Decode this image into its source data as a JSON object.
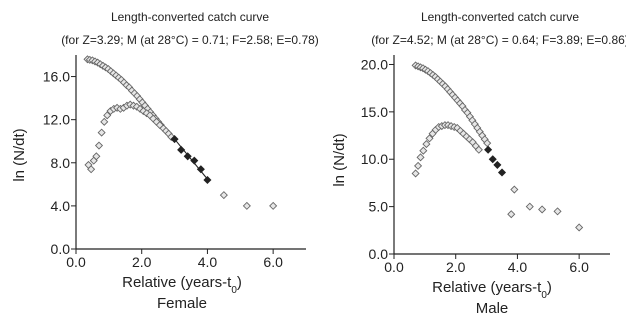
{
  "chart_data": [
    {
      "type": "scatter",
      "title": "Length-converted catch curve",
      "subtitle": "(for Z=3.29; M (at 28°C) = 0.71; F=2.58; E=0.78)",
      "xlabel": "Relative (years-t₀)",
      "ylabel": "ln (N/dt)",
      "panel_label": "Female",
      "xlim": [
        0,
        7
      ],
      "ylim": [
        0,
        18
      ],
      "xticks": [
        0,
        2,
        4,
        6
      ],
      "xtick_labels": [
        "0.0",
        "2.0",
        "4.0",
        "6.0"
      ],
      "yticks": [
        0,
        4,
        8,
        12,
        16
      ],
      "ytick_labels": [
        "0.0",
        "4.0",
        "8.0",
        "12.0",
        "16.0"
      ],
      "grid": false,
      "series": [
        {
          "marker": "open",
          "x": [
            0.35,
            0.42,
            0.5,
            0.58,
            0.66,
            0.74,
            0.82,
            0.9,
            0.98,
            1.06,
            1.14,
            1.22,
            1.3,
            1.38,
            1.46,
            1.54,
            1.62,
            1.7,
            1.78,
            1.86,
            1.94,
            2.02,
            2.1,
            2.18,
            2.26,
            2.34,
            2.42,
            2.5,
            2.58,
            2.66,
            2.74,
            2.82,
            2.9,
            0.38,
            0.46,
            0.54,
            0.62,
            0.7,
            0.78,
            0.86,
            0.95,
            1.05,
            1.15,
            1.25,
            1.35,
            1.45,
            1.55,
            1.65,
            1.75,
            1.85,
            1.95,
            2.05,
            2.15,
            2.25,
            2.35,
            2.45,
            2.55,
            4.5,
            5.2,
            6.0
          ],
          "y": [
            17.6,
            17.55,
            17.5,
            17.4,
            17.3,
            17.15,
            17.0,
            16.85,
            16.7,
            16.5,
            16.3,
            16.1,
            15.9,
            15.7,
            15.45,
            15.2,
            15.0,
            14.7,
            14.45,
            14.2,
            13.9,
            13.6,
            13.3,
            13.0,
            12.7,
            12.4,
            12.1,
            11.8,
            11.5,
            11.2,
            10.95,
            10.7,
            10.4,
            7.8,
            7.4,
            8.2,
            8.6,
            9.6,
            10.8,
            11.8,
            12.4,
            12.8,
            13.0,
            13.1,
            13.0,
            13.1,
            13.3,
            13.4,
            13.3,
            13.2,
            13.0,
            12.8,
            12.6,
            12.4,
            12.1,
            11.8,
            11.5,
            5.0,
            4.0,
            4.0
          ]
        },
        {
          "marker": "filled",
          "x": [
            3.0,
            3.2,
            3.4,
            3.6,
            3.8,
            4.0
          ],
          "y": [
            10.2,
            9.2,
            8.6,
            8.2,
            7.4,
            6.4
          ]
        }
      ],
      "regression": {
        "x": [
          3.0,
          4.05
        ],
        "y": [
          10.2,
          6.3
        ]
      }
    },
    {
      "type": "scatter",
      "title": "Length-converted catch curve",
      "subtitle": "(for Z=4.52; M (at 28°C) = 0.64; F=3.89; E=0.86)",
      "xlabel": "Relative (years-t₀)",
      "ylabel": "ln (N/dt)",
      "panel_label": "Male",
      "xlim": [
        0,
        7
      ],
      "ylim": [
        0,
        21
      ],
      "xticks": [
        0,
        2,
        4,
        6
      ],
      "xtick_labels": [
        "0.0",
        "2.0",
        "4.0",
        "6.0"
      ],
      "yticks": [
        0,
        5,
        10,
        15,
        20
      ],
      "ytick_labels": [
        "0.0",
        "5.0",
        "10.0",
        "15.0",
        "20.0"
      ],
      "grid": false,
      "series": [
        {
          "marker": "open",
          "x": [
            0.7,
            0.78,
            0.86,
            0.94,
            1.02,
            1.1,
            1.18,
            1.26,
            1.34,
            1.42,
            1.5,
            1.58,
            1.66,
            1.74,
            1.82,
            1.9,
            1.98,
            2.06,
            2.14,
            2.22,
            2.3,
            2.38,
            2.46,
            2.54,
            2.62,
            2.7,
            2.78,
            2.86,
            2.94,
            3.02,
            0.7,
            0.78,
            0.86,
            0.95,
            1.05,
            1.15,
            1.25,
            1.35,
            1.45,
            1.55,
            1.65,
            1.75,
            1.85,
            1.95,
            2.05,
            2.15,
            2.25,
            2.35,
            2.45,
            2.55,
            2.65,
            2.75,
            3.9,
            4.4,
            4.8,
            5.3,
            6.0,
            3.8
          ],
          "y": [
            19.9,
            19.8,
            19.7,
            19.6,
            19.45,
            19.3,
            19.1,
            18.9,
            18.7,
            18.45,
            18.2,
            17.95,
            17.7,
            17.4,
            17.1,
            16.8,
            16.5,
            16.2,
            15.9,
            15.6,
            15.2,
            14.9,
            14.5,
            14.1,
            13.7,
            13.3,
            12.9,
            12.5,
            12.1,
            11.7,
            8.5,
            9.3,
            10.2,
            10.9,
            11.6,
            12.2,
            12.7,
            13.1,
            13.4,
            13.5,
            13.6,
            13.6,
            13.5,
            13.4,
            13.3,
            13.0,
            12.7,
            12.4,
            12.1,
            11.8,
            11.4,
            11.0,
            6.8,
            5.0,
            4.7,
            4.5,
            2.8,
            4.2
          ]
        },
        {
          "marker": "filled",
          "x": [
            3.05,
            3.2,
            3.35,
            3.5
          ],
          "y": [
            11.0,
            10.0,
            9.4,
            8.6
          ]
        }
      ]
    }
  ]
}
